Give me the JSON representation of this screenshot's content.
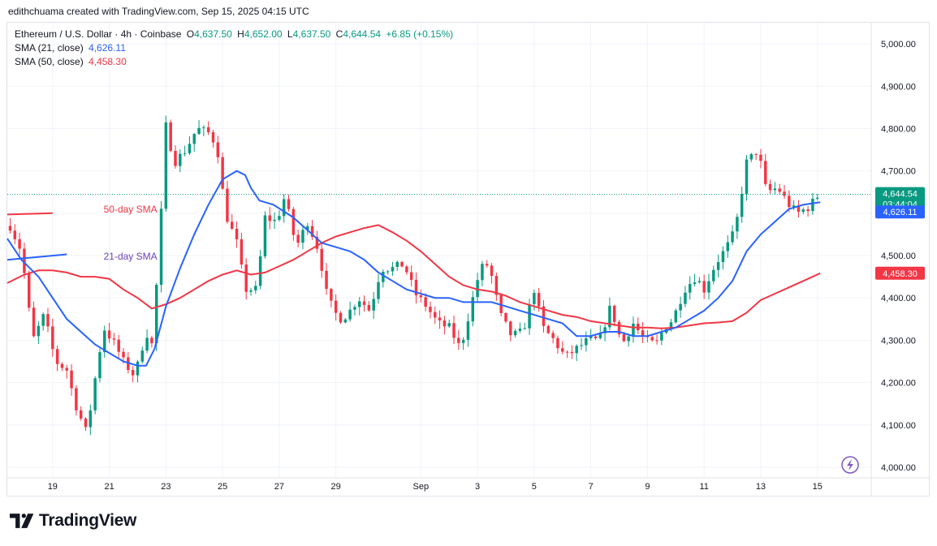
{
  "caption": "edithchuama created with TradingView.com, Sep 15, 2025 04:15 UTC",
  "legend": {
    "symbol": "Ethereum / U.S. Dollar · 4h · Coinbase",
    "o_label": "O",
    "o_value": "4,637.50",
    "h_label": "H",
    "h_value": "4,652.00",
    "l_label": "L",
    "l_value": "4,637.50",
    "c_label": "C",
    "c_value": "4,644.54",
    "change": "+6.85 (+0.15%)",
    "sma21_label": "SMA (21, close)",
    "sma21_value": "4,626.11",
    "sma50_label": "SMA (50, close)",
    "sma50_value": "4,458.30"
  },
  "logo_text": "TradingView",
  "colors": {
    "up": "#089981",
    "down": "#f23645",
    "sma21": "#2962ff",
    "sma50": "#f23645",
    "grid": "#f0f3fa",
    "axis_text": "#131722"
  },
  "chart_data": {
    "type": "candlestick",
    "symbol": "ETHUSD",
    "timeframe": "4h",
    "ylim": [
      3975,
      5050
    ],
    "yticks": [
      4000,
      4100,
      4200,
      4300,
      4400,
      4500,
      4600,
      4700,
      4800,
      4900,
      5000
    ],
    "ytick_labels": [
      "4,000.00",
      "4,100.00",
      "4,200.00",
      "4,300.00",
      "4,400.00",
      "4,500.00",
      "4,600.00",
      "4,700.00",
      "4,800.00",
      "4,900.00",
      "5,000.00"
    ],
    "xlim": [
      17.4,
      47.9
    ],
    "xticks": [
      19,
      21,
      23,
      25,
      27,
      29,
      32,
      34,
      36,
      38,
      40,
      42,
      44,
      46
    ],
    "xtick_labels": [
      "19",
      "21",
      "23",
      "25",
      "27",
      "29",
      "Sep",
      "3",
      "5",
      "7",
      "9",
      "11",
      "13",
      "15"
    ],
    "current_price": 4644.54,
    "current_price_label": "4,644.54",
    "countdown": "03:44:04",
    "sma21_label": "4,626.11",
    "sma50_label": "4,458.30",
    "annotations": [
      {
        "text": "50-day SMA",
        "x": 20.8,
        "y": 4602,
        "color": "#f23645"
      },
      {
        "text": "21-day SMA",
        "x": 20.8,
        "y": 4490,
        "color": "#6b41b5"
      }
    ],
    "annotation_lines": [
      {
        "color": "#f23645",
        "points": [
          [
            17.4,
            4597
          ],
          [
            19.0,
            4600
          ]
        ]
      },
      {
        "color": "#2962ff",
        "points": [
          [
            17.4,
            4490
          ],
          [
            19.5,
            4503
          ]
        ]
      }
    ],
    "close_anchors": [
      [
        17.5,
        4570
      ],
      [
        17.9,
        4510
      ],
      [
        18.3,
        4300
      ],
      [
        18.7,
        4360
      ],
      [
        19.1,
        4250
      ],
      [
        19.5,
        4230
      ],
      [
        19.8,
        4150
      ],
      [
        20.2,
        4080
      ],
      [
        20.5,
        4210
      ],
      [
        20.8,
        4330
      ],
      [
        21.2,
        4290
      ],
      [
        21.5,
        4250
      ],
      [
        21.9,
        4215
      ],
      [
        22.3,
        4320
      ],
      [
        22.5,
        4290
      ],
      [
        22.8,
        4540
      ],
      [
        22.95,
        4820
      ],
      [
        23.3,
        4720
      ],
      [
        23.7,
        4750
      ],
      [
        24.1,
        4800
      ],
      [
        24.5,
        4790
      ],
      [
        24.8,
        4760
      ],
      [
        25.1,
        4600
      ],
      [
        25.5,
        4530
      ],
      [
        25.8,
        4420
      ],
      [
        26.2,
        4420
      ],
      [
        26.5,
        4590
      ],
      [
        26.9,
        4580
      ],
      [
        27.2,
        4640
      ],
      [
        27.6,
        4520
      ],
      [
        28.0,
        4580
      ],
      [
        28.4,
        4510
      ],
      [
        28.7,
        4400
      ],
      [
        29.1,
        4350
      ],
      [
        29.4,
        4360
      ],
      [
        29.8,
        4400
      ],
      [
        30.2,
        4370
      ],
      [
        30.6,
        4470
      ],
      [
        31.0,
        4470
      ],
      [
        31.4,
        4480
      ],
      [
        31.8,
        4410
      ],
      [
        32.2,
        4380
      ],
      [
        32.6,
        4340
      ],
      [
        33.0,
        4330
      ],
      [
        33.4,
        4280
      ],
      [
        33.8,
        4390
      ],
      [
        34.1,
        4470
      ],
      [
        34.4,
        4480
      ],
      [
        34.8,
        4360
      ],
      [
        35.2,
        4310
      ],
      [
        35.6,
        4320
      ],
      [
        36.0,
        4420
      ],
      [
        36.3,
        4330
      ],
      [
        36.7,
        4300
      ],
      [
        37.1,
        4260
      ],
      [
        37.5,
        4280
      ],
      [
        37.9,
        4300
      ],
      [
        38.3,
        4300
      ],
      [
        38.7,
        4380
      ],
      [
        39.1,
        4290
      ],
      [
        39.5,
        4340
      ],
      [
        39.9,
        4300
      ],
      [
        40.3,
        4290
      ],
      [
        40.6,
        4330
      ],
      [
        40.9,
        4350
      ],
      [
        41.3,
        4420
      ],
      [
        41.7,
        4450
      ],
      [
        42.0,
        4420
      ],
      [
        42.4,
        4480
      ],
      [
        42.8,
        4520
      ],
      [
        43.1,
        4560
      ],
      [
        43.5,
        4720
      ],
      [
        43.9,
        4750
      ],
      [
        44.2,
        4650
      ],
      [
        44.6,
        4660
      ],
      [
        45.0,
        4620
      ],
      [
        45.3,
        4600
      ],
      [
        45.7,
        4615
      ],
      [
        46.0,
        4640
      ],
      [
        46.1,
        4644.54
      ]
    ],
    "sma21_points": [
      [
        17.4,
        4540
      ],
      [
        17.9,
        4490
      ],
      [
        18.5,
        4450
      ],
      [
        19.0,
        4400
      ],
      [
        19.5,
        4350
      ],
      [
        20.0,
        4320
      ],
      [
        20.5,
        4290
      ],
      [
        21.0,
        4270
      ],
      [
        21.5,
        4250
      ],
      [
        22.0,
        4240
      ],
      [
        22.3,
        4240
      ],
      [
        22.6,
        4280
      ],
      [
        23.0,
        4380
      ],
      [
        23.5,
        4470
      ],
      [
        24.0,
        4550
      ],
      [
        24.5,
        4620
      ],
      [
        25.0,
        4680
      ],
      [
        25.5,
        4700
      ],
      [
        25.8,
        4690
      ],
      [
        26.0,
        4660
      ],
      [
        26.3,
        4630
      ],
      [
        26.8,
        4620
      ],
      [
        27.5,
        4590
      ],
      [
        28.0,
        4560
      ],
      [
        28.5,
        4530
      ],
      [
        29.0,
        4520
      ],
      [
        29.5,
        4510
      ],
      [
        30.0,
        4490
      ],
      [
        30.5,
        4460
      ],
      [
        31.0,
        4440
      ],
      [
        31.5,
        4420
      ],
      [
        32.0,
        4410
      ],
      [
        32.5,
        4400
      ],
      [
        33.0,
        4400
      ],
      [
        33.5,
        4390
      ],
      [
        34.0,
        4390
      ],
      [
        34.5,
        4390
      ],
      [
        35.0,
        4380
      ],
      [
        35.5,
        4370
      ],
      [
        36.0,
        4360
      ],
      [
        36.5,
        4350
      ],
      [
        37.0,
        4340
      ],
      [
        37.5,
        4310
      ],
      [
        38.0,
        4310
      ],
      [
        38.5,
        4320
      ],
      [
        39.0,
        4320
      ],
      [
        39.5,
        4310
      ],
      [
        40.0,
        4310
      ],
      [
        40.5,
        4320
      ],
      [
        41.0,
        4330
      ],
      [
        41.5,
        4350
      ],
      [
        42.0,
        4370
      ],
      [
        42.5,
        4400
      ],
      [
        43.0,
        4440
      ],
      [
        43.5,
        4510
      ],
      [
        44.0,
        4550
      ],
      [
        44.5,
        4580
      ],
      [
        45.0,
        4610
      ],
      [
        45.5,
        4620
      ],
      [
        46.1,
        4626.11
      ]
    ],
    "sma50_points": [
      [
        17.4,
        4435
      ],
      [
        18.0,
        4455
      ],
      [
        18.5,
        4465
      ],
      [
        19.0,
        4465
      ],
      [
        19.5,
        4460
      ],
      [
        20.0,
        4450
      ],
      [
        20.5,
        4450
      ],
      [
        21.0,
        4445
      ],
      [
        21.5,
        4420
      ],
      [
        22.0,
        4400
      ],
      [
        22.5,
        4375
      ],
      [
        23.0,
        4385
      ],
      [
        23.5,
        4400
      ],
      [
        24.0,
        4420
      ],
      [
        24.5,
        4440
      ],
      [
        25.0,
        4455
      ],
      [
        25.5,
        4465
      ],
      [
        26.0,
        4455
      ],
      [
        26.5,
        4460
      ],
      [
        27.0,
        4475
      ],
      [
        27.5,
        4490
      ],
      [
        28.0,
        4510
      ],
      [
        28.5,
        4530
      ],
      [
        29.0,
        4545
      ],
      [
        29.5,
        4555
      ],
      [
        30.0,
        4565
      ],
      [
        30.5,
        4572
      ],
      [
        31.0,
        4555
      ],
      [
        31.5,
        4535
      ],
      [
        32.0,
        4510
      ],
      [
        32.5,
        4480
      ],
      [
        33.0,
        4450
      ],
      [
        33.5,
        4430
      ],
      [
        34.0,
        4420
      ],
      [
        34.5,
        4415
      ],
      [
        35.0,
        4405
      ],
      [
        35.5,
        4390
      ],
      [
        36.0,
        4380
      ],
      [
        36.5,
        4370
      ],
      [
        37.0,
        4360
      ],
      [
        37.5,
        4355
      ],
      [
        38.0,
        4345
      ],
      [
        38.5,
        4340
      ],
      [
        39.0,
        4335
      ],
      [
        39.5,
        4330
      ],
      [
        40.0,
        4330
      ],
      [
        40.5,
        4328
      ],
      [
        41.0,
        4330
      ],
      [
        41.5,
        4335
      ],
      [
        42.0,
        4340
      ],
      [
        42.5,
        4342
      ],
      [
        43.0,
        4345
      ],
      [
        43.5,
        4365
      ],
      [
        44.0,
        4395
      ],
      [
        44.5,
        4410
      ],
      [
        45.0,
        4425
      ],
      [
        45.5,
        4440
      ],
      [
        46.1,
        4458.3
      ]
    ]
  }
}
